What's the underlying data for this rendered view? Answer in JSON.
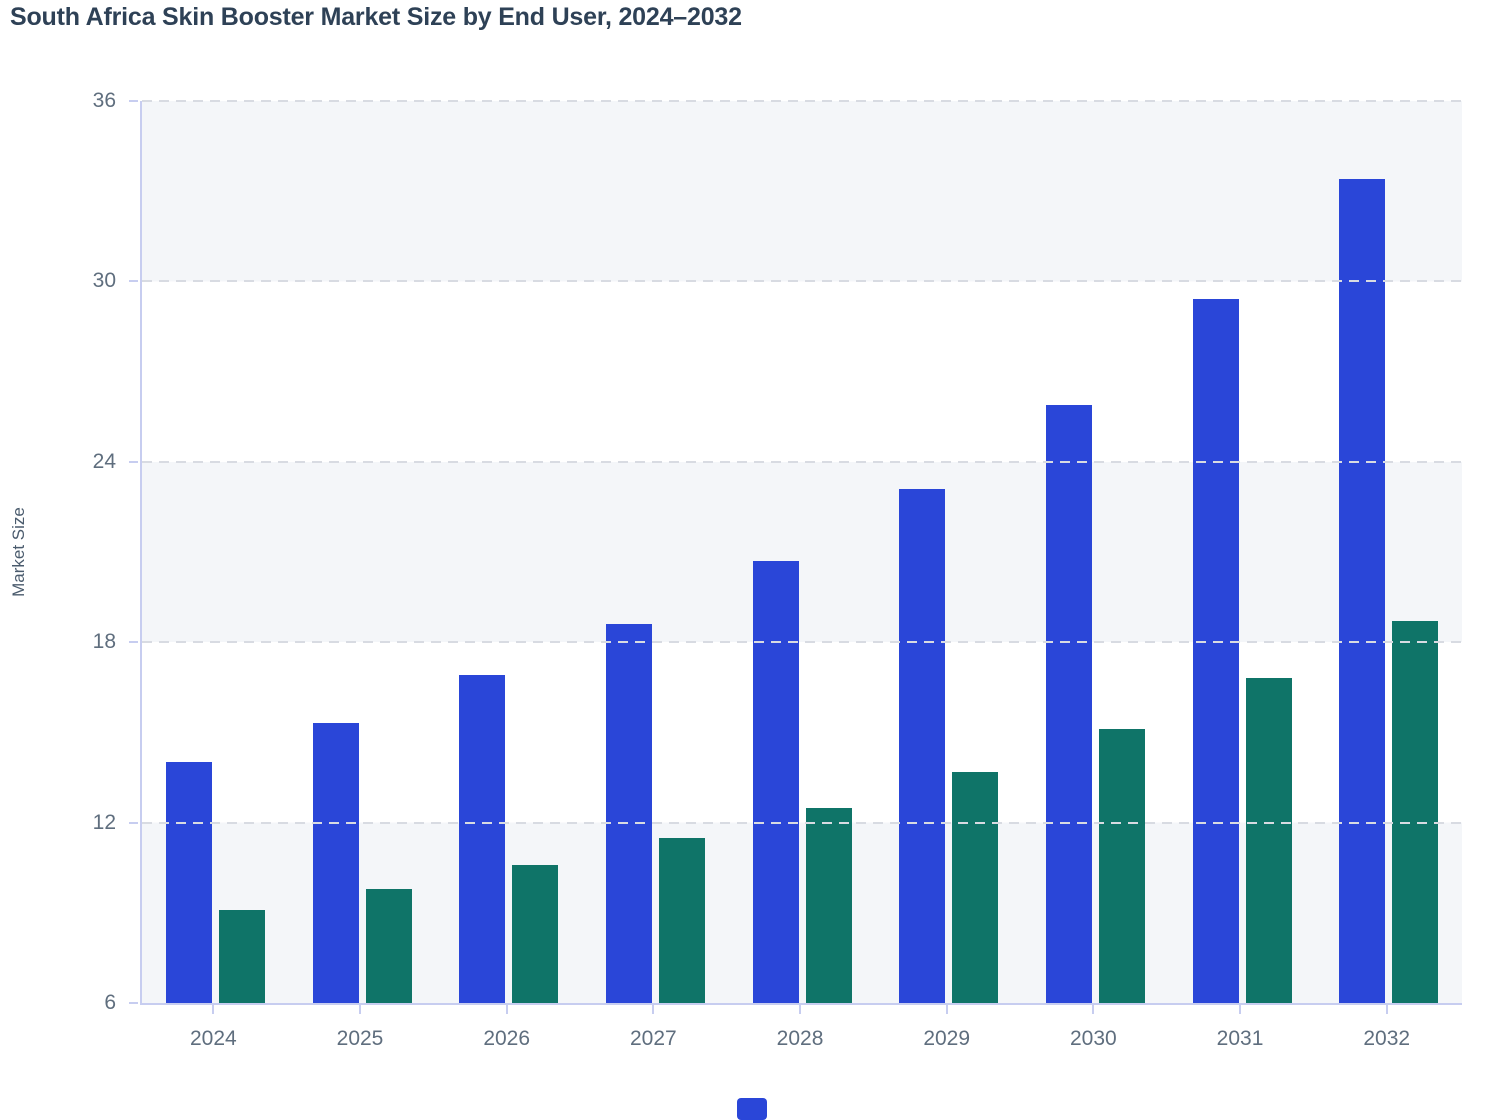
{
  "title": "South Africa Skin Booster Market Size by End User, 2024–2032",
  "chart_data": {
    "type": "bar",
    "title": "South Africa Skin Booster Market Size by End User, 2024–2032",
    "categories": [
      "2024",
      "2025",
      "2026",
      "2027",
      "2028",
      "2029",
      "2030",
      "2031",
      "2032"
    ],
    "series": [
      {
        "name": "blue",
        "color": "#2a46d8",
        "values": [
          14.0,
          15.3,
          16.9,
          18.6,
          20.7,
          23.1,
          25.9,
          29.4,
          33.4
        ]
      },
      {
        "name": "teal",
        "color": "#0f7468",
        "values": [
          9.1,
          9.8,
          10.6,
          11.5,
          12.5,
          13.7,
          15.1,
          16.8,
          18.7
        ]
      }
    ],
    "xlabel": "",
    "ylabel": "Market Size",
    "ylim": [
      6,
      36
    ],
    "yticks": [
      6,
      12,
      18,
      24,
      30,
      36
    ],
    "grid": "horizontal dashed gridlines with alternating band fill",
    "legend_position": "bottom center (cut off at image edge)"
  },
  "colors": {
    "bar_blue": "#2a46d8",
    "bar_teal": "#0f7468",
    "axis_line": "#c7cdf0",
    "gridline": "#d8dbe2",
    "band_fill": "#f4f6f9",
    "title_text": "#2e4156",
    "tick_text": "#5f6e7e",
    "axis_title_text": "#4a5b6d",
    "background": "#ffffff"
  }
}
